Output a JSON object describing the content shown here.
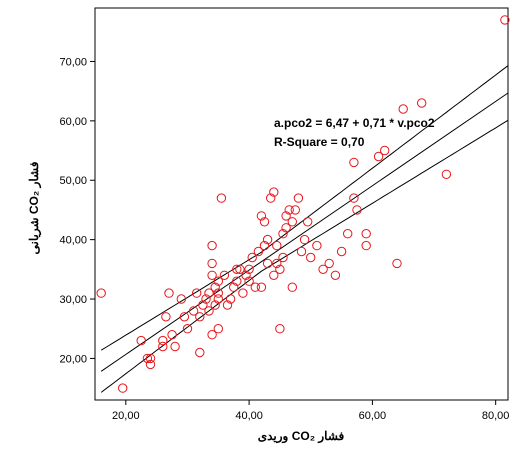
{
  "chart_data": {
    "type": "scatter",
    "title": "",
    "xlabel": "فشار CO₂ وریدی",
    "ylabel": "فشار CO₂ شریانی",
    "xlim": [
      15,
      82
    ],
    "ylim": [
      13,
      79
    ],
    "x_ticks": [
      "20,00",
      "40,00",
      "60,00",
      "80,00"
    ],
    "y_ticks": [
      "20,00",
      "30,00",
      "40,00",
      "50,00",
      "60,00",
      "70,00"
    ],
    "grid": false,
    "marker_color": "#e8151b",
    "line_color": "#000000",
    "fit_line": {
      "intercept": 6.47,
      "slope": 0.71
    },
    "confidence_band": {
      "x_mean": 42,
      "half_width_at_mean": 1.6,
      "half_width_growth": 0.075
    },
    "annotations": [
      "a.pco2 = 6,47 + 0,71 * v.pco2",
      "R-Square = 0,70"
    ],
    "points": [
      [
        81.5,
        77
      ],
      [
        16,
        31
      ],
      [
        19.5,
        15
      ],
      [
        22.5,
        23
      ],
      [
        23.5,
        20
      ],
      [
        24,
        19
      ],
      [
        24,
        20
      ],
      [
        26,
        22
      ],
      [
        26,
        23
      ],
      [
        26.5,
        27
      ],
      [
        27,
        31
      ],
      [
        27.5,
        24
      ],
      [
        28,
        22
      ],
      [
        29,
        30
      ],
      [
        29.5,
        27
      ],
      [
        30,
        25
      ],
      [
        31,
        28
      ],
      [
        31.5,
        31
      ],
      [
        32,
        21
      ],
      [
        32,
        27
      ],
      [
        32.5,
        29
      ],
      [
        33,
        30
      ],
      [
        33.5,
        31
      ],
      [
        33.5,
        28
      ],
      [
        34,
        36
      ],
      [
        34,
        39
      ],
      [
        34,
        34
      ],
      [
        34,
        24
      ],
      [
        34.5,
        29
      ],
      [
        34.5,
        32
      ],
      [
        35,
        30
      ],
      [
        35,
        33
      ],
      [
        35,
        31
      ],
      [
        35,
        25
      ],
      [
        35.5,
        47
      ],
      [
        36,
        34
      ],
      [
        36.5,
        29
      ],
      [
        37,
        30
      ],
      [
        37.5,
        32
      ],
      [
        38,
        33
      ],
      [
        38,
        35
      ],
      [
        38.5,
        35
      ],
      [
        39,
        31
      ],
      [
        39.5,
        34
      ],
      [
        40,
        35
      ],
      [
        40,
        33
      ],
      [
        40.5,
        37
      ],
      [
        41,
        32
      ],
      [
        41.5,
        38
      ],
      [
        42,
        44
      ],
      [
        42,
        32
      ],
      [
        42.5,
        39
      ],
      [
        42.5,
        43
      ],
      [
        43,
        40
      ],
      [
        43,
        36
      ],
      [
        43.5,
        47
      ],
      [
        44,
        48
      ],
      [
        44,
        34
      ],
      [
        44.5,
        39
      ],
      [
        44.5,
        36
      ],
      [
        45,
        35
      ],
      [
        45,
        25
      ],
      [
        45.5,
        37
      ],
      [
        45.5,
        41
      ],
      [
        46,
        44
      ],
      [
        46,
        42
      ],
      [
        46.5,
        45
      ],
      [
        47,
        43
      ],
      [
        47,
        32
      ],
      [
        47.5,
        45
      ],
      [
        48,
        47
      ],
      [
        48.5,
        38
      ],
      [
        49,
        40
      ],
      [
        49.5,
        43
      ],
      [
        50,
        37
      ],
      [
        51,
        39
      ],
      [
        52,
        35
      ],
      [
        53,
        36
      ],
      [
        54,
        34
      ],
      [
        55,
        38
      ],
      [
        56,
        41
      ],
      [
        57,
        53
      ],
      [
        57,
        47
      ],
      [
        57.5,
        45
      ],
      [
        59,
        39
      ],
      [
        59,
        41
      ],
      [
        61,
        54
      ],
      [
        62,
        55
      ],
      [
        64,
        36
      ],
      [
        65,
        62
      ],
      [
        68,
        63
      ],
      [
        72,
        51
      ]
    ]
  }
}
